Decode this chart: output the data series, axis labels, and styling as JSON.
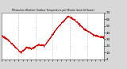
{
  "title": "Milwaukee Weather Outdoor Temperature per Minute (Last 24 Hours)",
  "line_color": "#dd0000",
  "background_color": "#d8d8d8",
  "plot_bg_color": "#ffffff",
  "grid_color": "#888888",
  "grid_style": ":",
  "ylim": [
    4,
    74
  ],
  "yticks": [
    4,
    14,
    24,
    34,
    44,
    54,
    64,
    74
  ],
  "num_points": 1440,
  "keypoints_t": [
    0.0,
    0.04,
    0.1,
    0.19,
    0.25,
    0.3,
    0.36,
    0.42,
    0.55,
    0.65,
    0.72,
    0.8,
    0.9,
    1.0
  ],
  "keypoints_y": [
    40,
    36,
    28,
    14,
    22,
    20,
    26,
    24,
    52,
    68,
    62,
    50,
    40,
    36
  ]
}
